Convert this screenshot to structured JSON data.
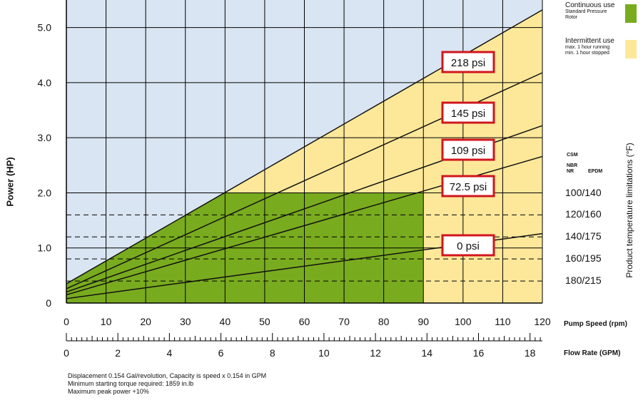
{
  "chart_data": {
    "type": "line",
    "ylabel": "Power (HP)",
    "y_right_label": "Product temperature limitations (°F)",
    "x_primary": {
      "label": "Pump Speed (rpm)",
      "range": [
        0,
        120
      ],
      "ticks": [
        0,
        10,
        20,
        30,
        40,
        50,
        60,
        70,
        80,
        90,
        100,
        110,
        120
      ]
    },
    "x_secondary": {
      "label": "Flow Rate (GPM)",
      "range": [
        0,
        18.48
      ],
      "ticks": [
        0,
        2,
        4,
        6,
        8,
        10,
        12,
        14,
        16,
        18
      ]
    },
    "y_range": [
      0,
      5.5
    ],
    "y_ticks": [
      0,
      1.0,
      2.0,
      3.0,
      4.0,
      5.0
    ],
    "y_tick_labels": [
      "0",
      "1.0",
      "2.0",
      "3.0",
      "4.0",
      "5.0"
    ],
    "grid": true,
    "series": [
      {
        "name": "218 psi",
        "x": [
          0,
          120
        ],
        "y": [
          0.35,
          5.32
        ]
      },
      {
        "name": "145 psi",
        "x": [
          0,
          120
        ],
        "y": [
          0.26,
          4.18
        ]
      },
      {
        "name": "109 psi",
        "x": [
          0,
          120
        ],
        "y": [
          0.2,
          3.22
        ]
      },
      {
        "name": "72.5 psi",
        "x": [
          0,
          120
        ],
        "y": [
          0.15,
          2.66
        ]
      },
      {
        "name": "0 psi",
        "x": [
          0,
          120
        ],
        "y": [
          0.08,
          1.26
        ]
      }
    ],
    "regions": {
      "continuous_use": {
        "x_max": 90,
        "y_max": 2.0,
        "color": "#79ab1f"
      },
      "intermittent_use": {
        "x_range": [
          90,
          120
        ],
        "color": "#fde89a"
      },
      "outside": {
        "color": "#dae5f3"
      }
    },
    "temperature_limits": [
      {
        "power": 2.0,
        "label": "100/140"
      },
      {
        "power": 1.6,
        "label": "120/160"
      },
      {
        "power": 1.2,
        "label": "140/175"
      },
      {
        "power": 0.8,
        "label": "160/195"
      },
      {
        "power": 0.4,
        "label": "180/215"
      }
    ],
    "temperature_header": [
      "CSM",
      "NBR",
      "NR",
      "EPDM"
    ],
    "legend": {
      "continuous": {
        "title": "Continuous use",
        "lines": [
          "Standard Pressure",
          "Rotor"
        ],
        "color": "#79ab1f"
      },
      "intermittent": {
        "title": "Intermittent use",
        "lines": [
          "max. 1 hour running",
          "min. 1 hour stopped"
        ],
        "color": "#fde89a"
      }
    },
    "notes": [
      "Displacement 0.154 Gal/revolution, Capacity is speed x 0.154 in GPM",
      "Minimum starting torque required: 1859 in.lb",
      "Maximum peak power +10%"
    ]
  },
  "colors": {
    "sky": "#dae5f3",
    "green": "#79ab1f",
    "yellow": "#fde89a",
    "red_border": "#d0161e",
    "line": "#111111"
  }
}
